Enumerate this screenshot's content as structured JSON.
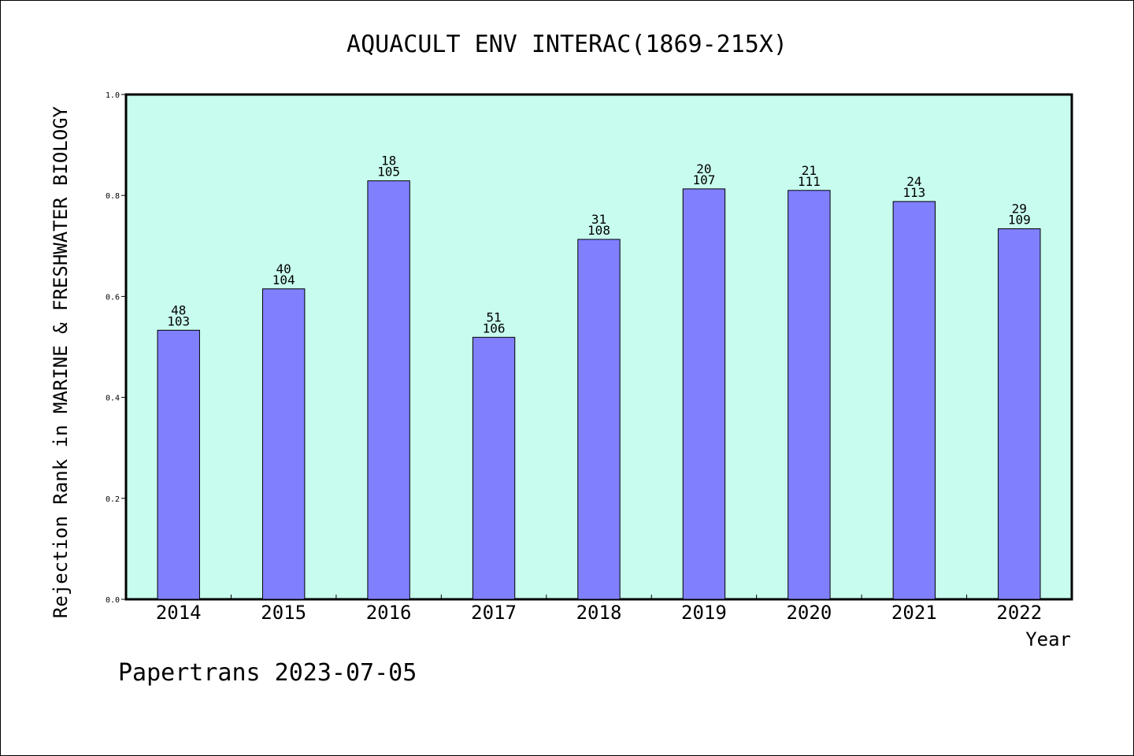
{
  "chart_data": {
    "type": "bar",
    "title": "AQUACULT ENV INTERAC(1869-215X)",
    "xlabel": "Year",
    "ylabel": "Rejection Rank in MARINE & FRESHWATER BIOLOGY",
    "ylim": [
      0,
      1.0
    ],
    "yticks": [
      "0.0",
      "0.2",
      "0.4",
      "0.6",
      "0.8",
      "1.0"
    ],
    "grid": false,
    "categories": [
      "2014",
      "2015",
      "2016",
      "2017",
      "2018",
      "2019",
      "2020",
      "2021",
      "2022"
    ],
    "values": [
      0.533,
      0.615,
      0.829,
      0.519,
      0.713,
      0.813,
      0.81,
      0.788,
      0.734
    ],
    "rank_labels": [
      "48",
      "40",
      "18",
      "51",
      "31",
      "20",
      "21",
      "24",
      "29"
    ],
    "total_labels": [
      "103",
      "104",
      "105",
      "106",
      "108",
      "107",
      "111",
      "113",
      "109"
    ],
    "colors": {
      "plot_bg": "#c8fcee",
      "bar_fill": "#8080ff",
      "bar_stroke": "#000000"
    }
  },
  "footer": {
    "text": "Papertrans 2023-07-05"
  }
}
